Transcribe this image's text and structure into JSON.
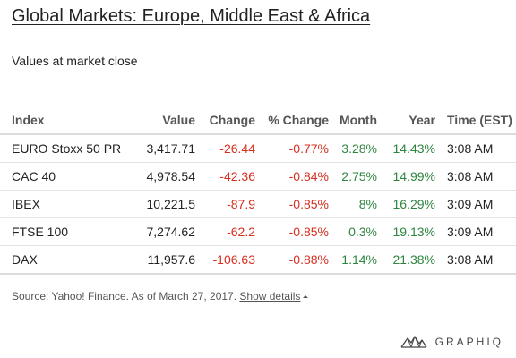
{
  "title": "Global Markets: Europe, Middle East & Africa",
  "subtitle": "Values at market close",
  "table": {
    "headers": {
      "index": "Index",
      "value": "Value",
      "change": "Change",
      "pct_change": "% Change",
      "month": "Month",
      "year": "Year",
      "time": "Time (EST)"
    },
    "rows": [
      {
        "index": "EURO Stoxx 50 PR",
        "value": "3,417.71",
        "change": "-26.44",
        "pct_change": "-0.77%",
        "month": "3.28%",
        "year": "14.43%",
        "time": "3:08 AM"
      },
      {
        "index": "CAC 40",
        "value": "4,978.54",
        "change": "-42.36",
        "pct_change": "-0.84%",
        "month": "2.75%",
        "year": "14.99%",
        "time": "3:08 AM"
      },
      {
        "index": "IBEX",
        "value": "10,221.5",
        "change": "-87.9",
        "pct_change": "-0.85%",
        "month": "8%",
        "year": "16.29%",
        "time": "3:09 AM"
      },
      {
        "index": "FTSE 100",
        "value": "7,274.62",
        "change": "-62.2",
        "pct_change": "-0.85%",
        "month": "0.3%",
        "year": "19.13%",
        "time": "3:09 AM"
      },
      {
        "index": "DAX",
        "value": "11,957.6",
        "change": "-106.63",
        "pct_change": "-0.88%",
        "month": "1.14%",
        "year": "21.38%",
        "time": "3:08 AM"
      }
    ]
  },
  "footer": {
    "source_text": "Source: Yahoo! Finance. As of March 27, 2017.",
    "details_link": "Show details"
  },
  "brand": {
    "name": "GRAPHIQ",
    "icon": "graphiq-logo-icon"
  },
  "colors": {
    "negative": "#d62f1f",
    "positive": "#2e8540",
    "header_text": "#555555"
  }
}
